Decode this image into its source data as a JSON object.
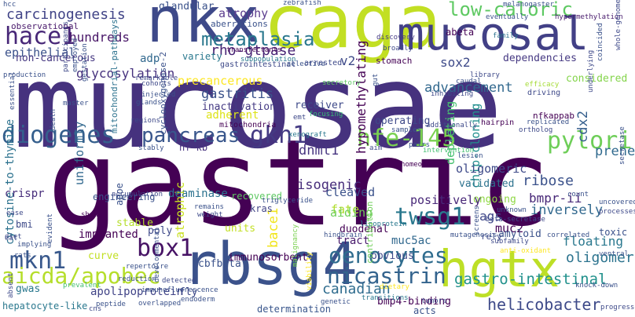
{
  "words": [
    {
      "text": "mucosae",
      "color": "#46327e"
    },
    {
      "text": "gastric",
      "color": "#440154"
    },
    {
      "text": "caga",
      "color": "#c2df23"
    },
    {
      "text": "nkx",
      "color": "#3e4989"
    },
    {
      "text": "mucosal",
      "color": "#424086"
    },
    {
      "text": "rbsg4",
      "color": "#3b528b"
    },
    {
      "text": "hgtx",
      "color": "#bddf26"
    },
    {
      "text": "hace1",
      "color": "#482878"
    },
    {
      "text": "diogenes",
      "color": "#355f8d"
    },
    {
      "text": "gkn1",
      "color": "#443a83"
    },
    {
      "text": "pylori",
      "color": "#6ece58"
    },
    {
      "text": "pancreas",
      "color": "#39568c"
    },
    {
      "text": "hfe-145",
      "color": "#7ad151"
    },
    {
      "text": "metaplasia",
      "color": "#2a788e"
    },
    {
      "text": "low-caloric",
      "color": "#5ec962"
    },
    {
      "text": "mkn1",
      "color": "#38588c"
    },
    {
      "text": "box1",
      "color": "#471365"
    },
    {
      "text": "aicda/apobec",
      "color": "#b5de2b"
    },
    {
      "text": "twsg1",
      "color": "#2a788e"
    },
    {
      "text": "oenocytes",
      "color": "#2f6c8e"
    },
    {
      "text": "nicastrin",
      "color": "#33638d"
    },
    {
      "text": "canadian",
      "color": "#2f6c8e"
    },
    {
      "text": "gastro-intestinal",
      "color": "#21918c"
    },
    {
      "text": "helicobacter",
      "color": "#3e4a89"
    },
    {
      "text": "carcinogenesis",
      "color": "#414487"
    },
    {
      "text": "aberrations",
      "color": "#3b528b"
    },
    {
      "text": "epithelial",
      "color": "#3b528b"
    },
    {
      "text": "hundreds",
      "color": "#481668"
    },
    {
      "text": "observational",
      "color": "#48186a"
    },
    {
      "text": "non-cancerous",
      "color": "#453781"
    },
    {
      "text": "glycosylation",
      "color": "#46327e"
    },
    {
      "text": "precancerous",
      "color": "#fde725"
    },
    {
      "text": "gastritis",
      "color": "#3b528b"
    },
    {
      "text": "adherent",
      "color": "#dde318"
    },
    {
      "text": "atrophy",
      "color": "#5b3c8e"
    },
    {
      "text": "glandular",
      "color": "#3b528b"
    },
    {
      "text": "rho-gtpase",
      "color": "#482475"
    },
    {
      "text": "adp",
      "color": "#31688e"
    },
    {
      "text": "variety",
      "color": "#29788e"
    },
    {
      "text": "advancement",
      "color": "#31688e"
    },
    {
      "text": "sox2",
      "color": "#3e4a89"
    },
    {
      "text": "v2",
      "color": "#3e4a89"
    },
    {
      "text": "abeta",
      "color": "#440154"
    },
    {
      "text": "considered",
      "color": "#84d44b"
    },
    {
      "text": "dependencies",
      "color": "#453882"
    },
    {
      "text": "preneoplastic",
      "color": "#306a8e"
    },
    {
      "text": "cdx2",
      "color": "#355f8d"
    },
    {
      "text": "chip-cloning",
      "color": "#218f8d"
    },
    {
      "text": "hypomethylating",
      "color": "#440154"
    },
    {
      "text": "depleting",
      "color": "#46c06f"
    },
    {
      "text": "operating",
      "color": "#3e4989"
    },
    {
      "text": "receiver",
      "color": "#3e4989"
    },
    {
      "text": "inactivation",
      "color": "#443983"
    },
    {
      "text": "nfkappab",
      "color": "#440154"
    },
    {
      "text": "dnmt1",
      "color": "#463480"
    },
    {
      "text": "oligomeric",
      "color": "#3e4a89"
    },
    {
      "text": "validated",
      "color": "#2c728e"
    },
    {
      "text": "ribose",
      "color": "#3b528b"
    },
    {
      "text": "bmpr-ii",
      "color": "#482878"
    },
    {
      "text": "ongoing",
      "color": "#8fd744"
    },
    {
      "text": "ags",
      "color": "#3f4788"
    },
    {
      "text": "muc2",
      "color": "#440154"
    },
    {
      "text": "inversely",
      "color": "#31688e"
    },
    {
      "text": "fate",
      "color": "#b0dd2f"
    },
    {
      "text": "isogenic",
      "color": "#472d7b"
    },
    {
      "text": "cleaved",
      "color": "#3b528b"
    },
    {
      "text": "positively",
      "color": "#482878"
    },
    {
      "text": "floating",
      "color": "#2a788e"
    },
    {
      "text": "oligomer",
      "color": "#2c738e"
    },
    {
      "text": "duodenal",
      "color": "#440154"
    },
    {
      "text": "aiding",
      "color": "#6ece58"
    },
    {
      "text": "muc5ac",
      "color": "#31688e"
    },
    {
      "text": "tract",
      "color": "#481a6c"
    },
    {
      "text": "obvious",
      "color": "#3e4989"
    },
    {
      "text": "amyloid",
      "color": "#3b528b"
    },
    {
      "text": "cbfbeta",
      "color": "#3b528b"
    },
    {
      "text": "immunosorbent",
      "color": "#440154"
    },
    {
      "text": "apolipoprotein",
      "color": "#414487"
    },
    {
      "text": "hepatocyte-like",
      "color": "#2a788e"
    },
    {
      "text": "bmp4-binding",
      "color": "#440154"
    },
    {
      "text": "determination",
      "color": "#39568c"
    },
    {
      "text": "acts",
      "color": "#3b528b"
    },
    {
      "text": "fly",
      "color": "#3e4989"
    },
    {
      "text": "gwas",
      "color": "#2a788e"
    },
    {
      "text": "curve",
      "color": "#c2df23"
    },
    {
      "text": "poly",
      "color": "#3e4989"
    },
    {
      "text": "implanted",
      "color": "#440154"
    },
    {
      "text": "stable",
      "color": "#b5de2b"
    },
    {
      "text": "atrophic",
      "color": "#c8e020"
    },
    {
      "text": "units",
      "color": "#c2df23"
    },
    {
      "text": "bace1",
      "color": "#f1e51d"
    },
    {
      "text": "crispr",
      "color": "#472d7b"
    },
    {
      "text": "cytosine-to-thymine",
      "color": "#2c728e"
    },
    {
      "text": "uniformly",
      "color": "#31688e"
    },
    {
      "text": "engineering",
      "color": "#3b528b"
    },
    {
      "text": "deaminase",
      "color": "#2c728e"
    },
    {
      "text": "recovered",
      "color": "#5ec962"
    },
    {
      "text": "kras",
      "color": "#414487"
    },
    {
      "text": "nf-kb",
      "color": "#46317e"
    },
    {
      "text": "apoe",
      "color": "#3b528b"
    },
    {
      "text": "bmi",
      "color": "#3e4a89"
    },
    {
      "text": "mitochondrial-pathways",
      "color": "#2c728e"
    },
    {
      "text": "cyclooxygenase-2",
      "color": "#3b528b"
    },
    {
      "text": "stomach",
      "color": "#440154"
    },
    {
      "text": "gastrointestinal",
      "color": "#3e4989"
    },
    {
      "text": "arrested",
      "color": "#3e4989"
    },
    {
      "text": "secretory",
      "color": "#5ec962"
    },
    {
      "text": "mitochondria",
      "color": "#440154"
    },
    {
      "text": "focusing",
      "color": "#38b977"
    },
    {
      "text": "xenograft",
      "color": "#2a788e"
    },
    {
      "text": "eventually",
      "color": "#3b528b"
    },
    {
      "text": "hypermethylation",
      "color": "#481a6c"
    },
    {
      "text": "melanogaster",
      "color": "#3b528b"
    },
    {
      "text": "transfectants",
      "color": "#440154"
    },
    {
      "text": "subpopulation",
      "color": "#2a788e"
    },
    {
      "text": "selective",
      "color": "#3b528b"
    },
    {
      "text": "discovery",
      "color": "#443a83"
    },
    {
      "text": "broadly",
      "color": "#3e4989"
    },
    {
      "text": "family",
      "color": "#2c728e"
    },
    {
      "text": "library",
      "color": "#3e4989"
    },
    {
      "text": "caudal",
      "color": "#3b528b"
    },
    {
      "text": "efficacy",
      "color": "#a5db36"
    },
    {
      "text": "driving",
      "color": "#3e4989"
    },
    {
      "text": "replicated",
      "color": "#3b528b"
    },
    {
      "text": "additionally",
      "color": "#3e4989"
    },
    {
      "text": "hairpin",
      "color": "#440154"
    },
    {
      "text": "ortholog",
      "color": "#3e4989"
    },
    {
      "text": "samples",
      "color": "#3b528b"
    },
    {
      "text": "aim",
      "color": "#3e4989"
    },
    {
      "text": "pairs",
      "color": "#3b528b"
    },
    {
      "text": "intervention",
      "color": "#44bf70"
    },
    {
      "text": "lesion",
      "color": "#3b528b"
    },
    {
      "text": "homeodomain",
      "color": "#440154"
    },
    {
      "text": "triglyceride",
      "color": "#3b528b"
    },
    {
      "text": "lipoprotein",
      "color": "#2a788e"
    },
    {
      "text": "contribution",
      "color": "#6ece58"
    },
    {
      "text": "hindbrain",
      "color": "#3b528b"
    },
    {
      "text": "transitions",
      "color": "#2a788e"
    },
    {
      "text": "genetic",
      "color": "#3b528b"
    },
    {
      "text": "tumors",
      "color": "#3e4989"
    },
    {
      "text": "dietary",
      "color": "#fde725"
    },
    {
      "text": "endoderm",
      "color": "#3b528b"
    },
    {
      "text": "overlapped",
      "color": "#3b528b"
    },
    {
      "text": "detected",
      "color": "#3e4989"
    },
    {
      "text": "immunofluorescence",
      "color": "#3b528b"
    },
    {
      "text": "developmental",
      "color": "#3b528b"
    },
    {
      "text": "viability",
      "color": "#fde725"
    },
    {
      "text": "malignancy",
      "color": "#7ad151"
    },
    {
      "text": "reduction",
      "color": "#3b528b"
    },
    {
      "text": "prevalent",
      "color": "#44bf70"
    },
    {
      "text": "peptide",
      "color": "#3b528b"
    },
    {
      "text": "cns",
      "color": "#3e4989"
    },
    {
      "text": "shrna",
      "color": "#440154"
    },
    {
      "text": "remains",
      "color": "#3b528b"
    },
    {
      "text": "weight",
      "color": "#3e4989"
    },
    {
      "text": "accumulation",
      "color": "#3e4989"
    },
    {
      "text": "stably",
      "color": "#3b528b"
    },
    {
      "text": "regions",
      "color": "#3e4989"
    },
    {
      "text": "glands",
      "color": "#3b528b"
    },
    {
      "text": "injected",
      "color": "#3b528b"
    },
    {
      "text": "cohorts",
      "color": "#3e4989"
    },
    {
      "text": "remarkable",
      "color": "#3e4989"
    },
    {
      "text": "employed",
      "color": "#3b528b"
    },
    {
      "text": "gestation",
      "color": "#3b528b"
    },
    {
      "text": "participants",
      "color": "#3e4989"
    },
    {
      "text": "essential",
      "color": "#3b528b"
    },
    {
      "text": "death",
      "color": "#3b528b"
    },
    {
      "text": "master",
      "color": "#3b528b"
    },
    {
      "text": "ease",
      "color": "#3e4989"
    },
    {
      "text": "diet",
      "color": "#3e4989"
    },
    {
      "text": "implying",
      "color": "#3b528b"
    },
    {
      "text": "absent",
      "color": "#3e4989"
    },
    {
      "text": "repertoire",
      "color": "#3b528b"
    },
    {
      "text": "evident",
      "color": "#3b528b"
    },
    {
      "text": "eat",
      "color": "#3e4989"
    },
    {
      "text": "rats",
      "color": "#3b528b"
    },
    {
      "text": "production",
      "color": "#3b528b"
    },
    {
      "text": "whole-genome",
      "color": "#3e4989"
    },
    {
      "text": "coincided",
      "color": "#3b528b"
    },
    {
      "text": "underlying",
      "color": "#3e4989"
    },
    {
      "text": "secretase",
      "color": "#3b528b"
    },
    {
      "text": "uncovered",
      "color": "#3b528b"
    },
    {
      "text": "processes",
      "color": "#3e4989"
    },
    {
      "text": "unknown",
      "color": "#3b528b"
    },
    {
      "text": "beta-secretase",
      "color": "#3e4989"
    },
    {
      "text": "count",
      "color": "#3b528b"
    },
    {
      "text": "rely",
      "color": "#3e4989"
    },
    {
      "text": "toxic",
      "color": "#3b528b"
    },
    {
      "text": "correlated",
      "color": "#3b528b"
    },
    {
      "text": "subfamily",
      "color": "#3e4989"
    },
    {
      "text": "ventral",
      "color": "#3b528b"
    },
    {
      "text": "anti-oxidant",
      "color": "#fde725"
    },
    {
      "text": "knock-down",
      "color": "#3b528b"
    },
    {
      "text": "progresses",
      "color": "#3e4989"
    },
    {
      "text": "mutagenesis",
      "color": "#3b528b"
    },
    {
      "text": "screens",
      "color": "#3b528b"
    },
    {
      "text": "inhibiting",
      "color": "#3e4989"
    },
    {
      "text": "gut",
      "color": "#3b528b"
    },
    {
      "text": "emt",
      "color": "#3e4989"
    },
    {
      "text": "hcc",
      "color": "#3b528b"
    },
    {
      "text": "zebrafish",
      "color": "#3b528b"
    }
  ]
}
